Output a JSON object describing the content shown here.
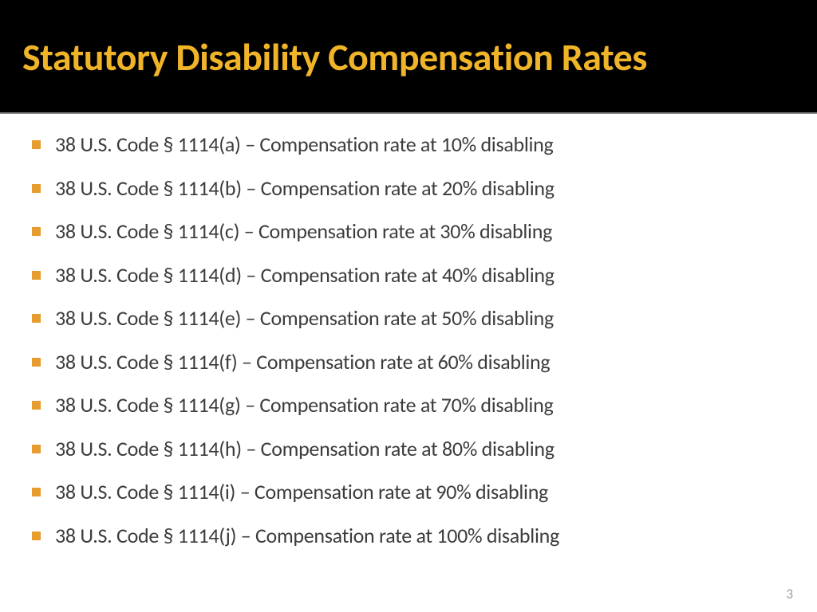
{
  "title": "Statutory Disability Compensation Rates",
  "title_color": "#f0b428",
  "title_bg": "#000000",
  "bullet_color": "#e69c2e",
  "text_color": "#3c3c3c",
  "items": [
    "38 U.S. Code § 1114(a) – Compensation rate at 10% disabling",
    "38 U.S. Code § 1114(b) – Compensation rate at 20% disabling",
    "38 U.S. Code § 1114(c) – Compensation rate at 30% disabling",
    "38 U.S. Code § 1114(d) – Compensation rate at 40% disabling",
    "38 U.S. Code § 1114(e) – Compensation rate at 50% disabling",
    "38 U.S. Code § 1114(f) – Compensation rate at 60% disabling",
    "38 U.S. Code § 1114(g) – Compensation rate at 70% disabling",
    "38 U.S. Code § 1114(h) – Compensation rate at 80% disabling",
    "38 U.S. Code § 1114(i) – Compensation rate at 90% disabling",
    "38 U.S. Code § 1114(j) – Compensation rate at 100% disabling"
  ],
  "page_number": "3"
}
